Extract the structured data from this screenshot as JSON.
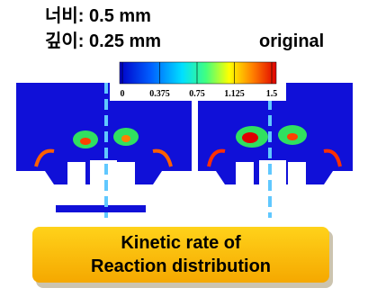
{
  "labels": {
    "width": "너비: 0.5 mm",
    "depth": "깊이: 0.25 mm",
    "original": "original"
  },
  "colorbar": {
    "lim": [
      0,
      1.5
    ],
    "ticks": [
      0,
      0.375,
      0.75,
      1.125,
      1.5
    ]
  },
  "caption": {
    "line1": "Kinetic rate of",
    "line2": "Reaction distribution"
  }
}
